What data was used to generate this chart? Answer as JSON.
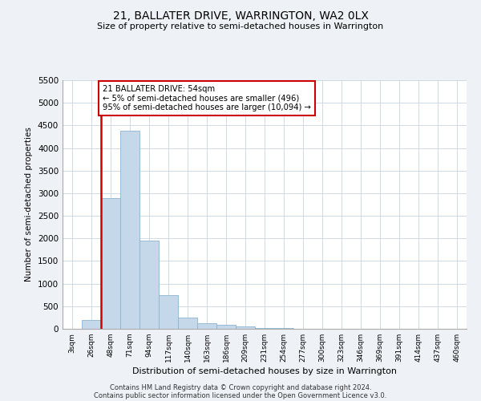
{
  "title1": "21, BALLATER DRIVE, WARRINGTON, WA2 0LX",
  "title2": "Size of property relative to semi-detached houses in Warrington",
  "xlabel": "Distribution of semi-detached houses by size in Warrington",
  "ylabel": "Number of semi-detached properties",
  "annotation_title": "21 BALLATER DRIVE: 54sqm",
  "annotation_line1": "← 5% of semi-detached houses are smaller (496)",
  "annotation_line2": "95% of semi-detached houses are larger (10,094) →",
  "footer1": "Contains HM Land Registry data © Crown copyright and database right 2024.",
  "footer2": "Contains public sector information licensed under the Open Government Licence v3.0.",
  "bar_color": "#c5d8ea",
  "bar_edgecolor": "#8eb4d0",
  "red_line_color": "#cc0000",
  "annotation_box_facecolor": "#ffffff",
  "annotation_box_edgecolor": "#cc0000",
  "ylim": [
    0,
    5500
  ],
  "yticks": [
    0,
    500,
    1000,
    1500,
    2000,
    2500,
    3000,
    3500,
    4000,
    4500,
    5000,
    5500
  ],
  "categories": [
    "3sqm",
    "26sqm",
    "48sqm",
    "71sqm",
    "94sqm",
    "117sqm",
    "140sqm",
    "163sqm",
    "186sqm",
    "209sqm",
    "231sqm",
    "254sqm",
    "277sqm",
    "300sqm",
    "323sqm",
    "346sqm",
    "369sqm",
    "391sqm",
    "414sqm",
    "437sqm",
    "460sqm"
  ],
  "values": [
    0,
    200,
    2900,
    4380,
    1950,
    750,
    250,
    120,
    80,
    50,
    25,
    10,
    5,
    3,
    2,
    1,
    1,
    0,
    0,
    0,
    0
  ],
  "red_line_index": 2,
  "background_color": "#eef2f7",
  "plot_background": "#ffffff",
  "grid_color": "#c8d4e0"
}
